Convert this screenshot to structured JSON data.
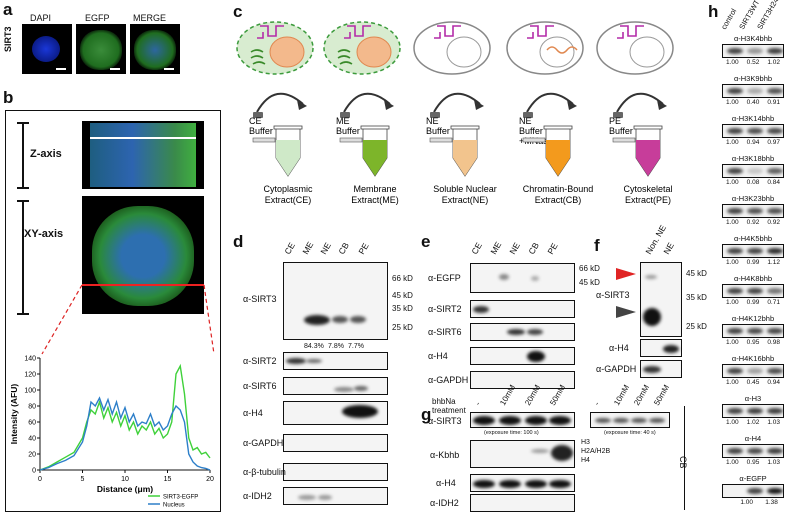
{
  "panels": {
    "a": "a",
    "b": "b",
    "c": "c",
    "d": "d",
    "e": "e",
    "f": "f",
    "g": "g",
    "h": "h"
  },
  "panel_a": {
    "row_label": "SIRT3",
    "col_labels": [
      "DAPI",
      "EGFP",
      "MERGE"
    ]
  },
  "panel_b": {
    "z_label": "Z-axis",
    "xy_label": "XY-axis",
    "chart_data": {
      "type": "line",
      "xlabel": "Distance (μm)",
      "ylabel": "Intensity (AFU)",
      "xlim": [
        0,
        20
      ],
      "ylim": [
        0,
        140
      ],
      "xticks": [
        "0",
        "5",
        "10",
        "15",
        "20"
      ],
      "yticks": [
        "0",
        "20",
        "40",
        "60",
        "80",
        "100",
        "120",
        "140"
      ],
      "series": [
        {
          "name": "SIRT3-EGFP",
          "color": "#3fd13a",
          "x": [
            0,
            1,
            2,
            3,
            4,
            5,
            5.5,
            6,
            6.5,
            7,
            7.5,
            8,
            8.5,
            9,
            9.5,
            10,
            10.5,
            11,
            11.5,
            12,
            12.5,
            13,
            13.5,
            14,
            14.5,
            15,
            15.5,
            16,
            16.5,
            17,
            17.5,
            18,
            18.5,
            19,
            19.5,
            20
          ],
          "y": [
            0,
            4,
            10,
            16,
            22,
            40,
            60,
            75,
            70,
            85,
            65,
            78,
            60,
            72,
            55,
            68,
            50,
            60,
            45,
            55,
            50,
            60,
            45,
            52,
            40,
            45,
            60,
            120,
            130,
            95,
            40,
            25,
            28,
            20,
            22,
            15
          ]
        },
        {
          "name": "Nucleus",
          "color": "#2d7fc9",
          "x": [
            0,
            1,
            2,
            3,
            4,
            5,
            5.5,
            6,
            6.5,
            7,
            7.5,
            8,
            8.5,
            9,
            9.5,
            10,
            10.5,
            11,
            11.5,
            12,
            12.5,
            13,
            13.5,
            14,
            14.5,
            15,
            15.5,
            16,
            16.5,
            17,
            17.5,
            18,
            18.5,
            19,
            19.5,
            20
          ],
          "y": [
            0,
            3,
            8,
            12,
            18,
            35,
            55,
            85,
            80,
            90,
            75,
            88,
            70,
            85,
            65,
            78,
            60,
            70,
            55,
            60,
            58,
            70,
            55,
            60,
            50,
            55,
            70,
            80,
            75,
            60,
            20,
            10,
            5,
            3,
            2,
            0
          ]
        }
      ]
    }
  },
  "panel_c": {
    "buffers": [
      "CE\nBuffer",
      "ME\nBuffer",
      "NE\nBuffer",
      "NE\nBuffer\n+MNase",
      "PE\nBuffer"
    ],
    "extracts": [
      "Cytoplasmic\nExtract(CE)",
      "Membrane\nExtract(ME)",
      "Soluble Nuclear\nExtract(NE)",
      "Chromatin-Bound\nExtract(CB)",
      "Cytoskeletal\nExtract(PE)"
    ],
    "tube_colors": [
      "#cfe9c8",
      "#7db52a",
      "#f2c48d",
      "#f39a1d",
      "#c73d9a"
    ]
  },
  "panel_d": {
    "lanes": [
      "CE",
      "ME",
      "NE",
      "CB",
      "PE"
    ],
    "markers": [
      "66 kD",
      "45 kD",
      "35 kD",
      "25 kD"
    ],
    "rows": [
      "α-SIRT3",
      "α-SIRT2",
      "α-SIRT6",
      "α-H4",
      "α-GAPDH",
      "α-β-tubulin",
      "α-IDH2"
    ],
    "percents": [
      "84.3%",
      "7.8%",
      "7.7%"
    ]
  },
  "panel_e": {
    "lanes": [
      "CE",
      "ME",
      "NE",
      "CB",
      "PE"
    ],
    "markers": [
      "66 kD",
      "45 kD"
    ],
    "rows": [
      "α-EGFP",
      "α-SIRT2",
      "α-SIRT6",
      "α-H4",
      "α-GAPDH"
    ]
  },
  "panel_f": {
    "lanes": [
      "Non. NE",
      "NE"
    ],
    "markers": [
      "45 kD",
      "35 kD",
      "25 kD"
    ],
    "rows": [
      "α-SIRT3",
      "α-H4",
      "α-GAPDH"
    ]
  },
  "panel_g": {
    "treatment": "bhbNa\ntreatment",
    "lanes": [
      "-",
      "10mM",
      "20mM",
      "50mM"
    ],
    "rows": [
      "α-SIRT3",
      "α-Kbhb",
      "α-H4",
      "α-IDH2"
    ],
    "exposure1": "(exposure time: 100 s)",
    "exposure2": "(exposure time: 40 s)",
    "histones": [
      "H3",
      "H2A/H2B",
      "H4"
    ],
    "cb": "CB"
  },
  "panel_h": {
    "lanes": [
      "control",
      "SIRT3WT",
      "SIRT3H248Y"
    ],
    "rows": [
      {
        "label": "α-H3K4bhb",
        "vals": [
          "1.00",
          "0.52",
          "1.02"
        ]
      },
      {
        "label": "α-H3K9bhb",
        "vals": [
          "1.00",
          "0.40",
          "0.91"
        ]
      },
      {
        "label": "α-H3K14bhb",
        "vals": [
          "1.00",
          "0.94",
          "0.97"
        ]
      },
      {
        "label": "α-H3K18bhb",
        "vals": [
          "1.00",
          "0.08",
          "0.84"
        ]
      },
      {
        "label": "α-H3K23bhb",
        "vals": [
          "1.00",
          "0.92",
          "0.92"
        ]
      },
      {
        "label": "α-H4K5bhb",
        "vals": [
          "1.00",
          "0.99",
          "1.12"
        ]
      },
      {
        "label": "α-H4K8bhb",
        "vals": [
          "1.00",
          "0.99",
          "0.71"
        ]
      },
      {
        "label": "α-H4K12bhb",
        "vals": [
          "1.00",
          "0.95",
          "0.98"
        ]
      },
      {
        "label": "α-H4K16bhb",
        "vals": [
          "1.00",
          "0.45",
          "0.94"
        ]
      },
      {
        "label": "α-H3",
        "vals": [
          "1.00",
          "1.02",
          "1.03"
        ]
      },
      {
        "label": "α-H4",
        "vals": [
          "1.00",
          "0.95",
          "1.03"
        ]
      },
      {
        "label": "α-EGFP",
        "vals": [
          "",
          "1.00",
          "1.38"
        ]
      }
    ]
  }
}
